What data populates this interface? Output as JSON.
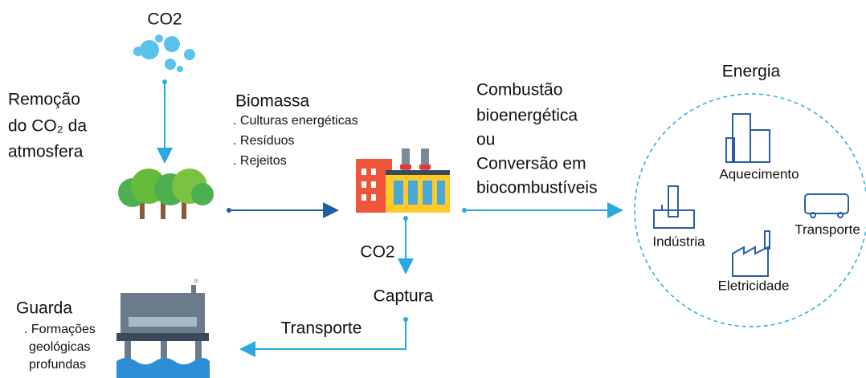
{
  "atmosphere": {
    "label": "CO2"
  },
  "removal": {
    "lines": [
      "Remoção",
      "do CO₂ da",
      "atmosfera"
    ]
  },
  "biomass": {
    "title": "Biomassa",
    "items": [
      ". Culturas energéticas",
      ". Resíduos",
      ". Rejeitos"
    ]
  },
  "conversion": {
    "lines": [
      "Combustão",
      "bioenergética",
      "ou",
      "Conversão em",
      "biocombustíveis"
    ]
  },
  "energy": {
    "title": "Energia",
    "uses": [
      "Aquecimento",
      "Indústria",
      "Transporte",
      "Eletricidade"
    ]
  },
  "capture": {
    "gas": "CO2",
    "label": "Captura"
  },
  "transport": {
    "label": "Transporte"
  },
  "storage": {
    "title": "Guarda",
    "lines": [
      ". Formações",
      "geológicas",
      "profundas"
    ]
  }
}
